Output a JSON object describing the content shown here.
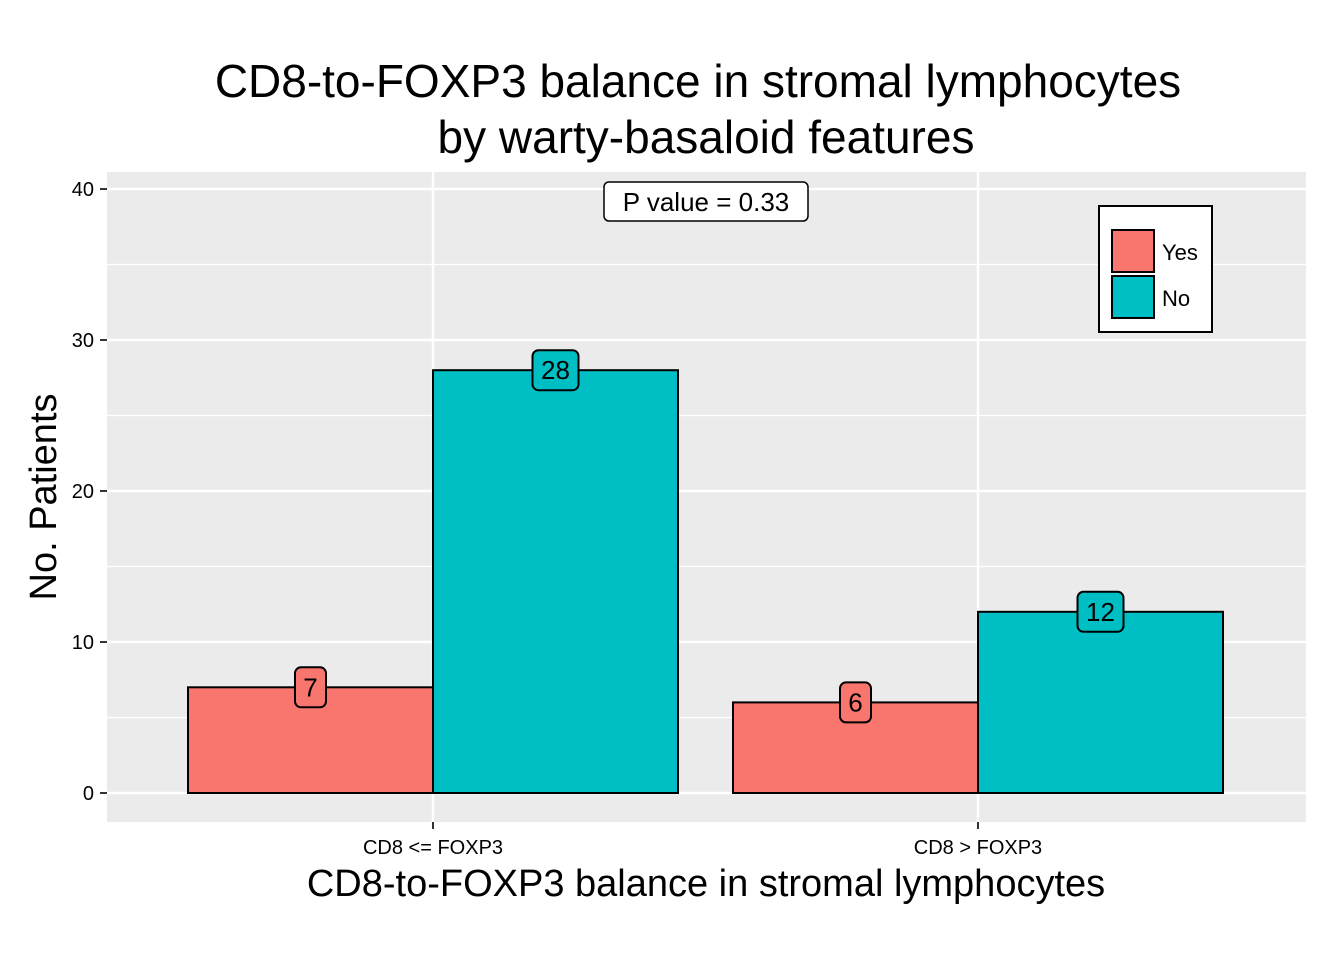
{
  "chart_data": {
    "type": "bar",
    "title": [
      "CD8-to-FOXP3 balance in stromal lymphocytes",
      "by warty-basaloid features"
    ],
    "xlabel": "CD8-to-FOXP3 balance in stromal lymphocytes",
    "ylabel": "No. Patients",
    "categories": [
      "CD8 <= FOXP3",
      "CD8 > FOXP3"
    ],
    "series": [
      {
        "name": "Yes",
        "color": "#F8766D",
        "values": [
          7,
          6
        ]
      },
      {
        "name": "No",
        "color": "#00BFC4",
        "values": [
          28,
          12
        ]
      }
    ],
    "ylim": [
      0,
      40
    ],
    "yticks": [
      0,
      10,
      20,
      30,
      40
    ],
    "annotation": "P value = 0.33",
    "legend_position": "top-right",
    "grid": true,
    "panel_color": "#EBEBEB"
  }
}
